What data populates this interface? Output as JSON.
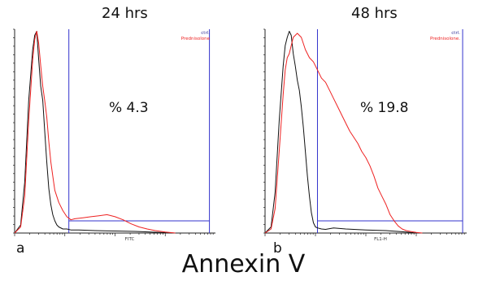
{
  "figure_label": "Annexin V",
  "colors": {
    "ctrl": "#111111",
    "treated": "#ee2222",
    "gate": "#3333cc",
    "axis": "#222222"
  },
  "chart_data": [
    {
      "type": "line",
      "panel_letter": "a",
      "title": "24 hrs",
      "xlabel": "FITC",
      "ylabel": "",
      "gate_text": "% 4.3",
      "legend": [
        "ctrl.",
        "Prednisolone"
      ],
      "legend_position": "top-right",
      "grid": false,
      "xlim": [
        0,
        100
      ],
      "ylim": [
        0,
        100
      ],
      "gate": {
        "x_start": 27,
        "x_end": 97,
        "level": 6
      },
      "series": [
        {
          "name": "ctrl.",
          "x": [
            0,
            3,
            5,
            7,
            9,
            10,
            11,
            12,
            13,
            14,
            15,
            16,
            17,
            18,
            19,
            20,
            21,
            22,
            24,
            26,
            28,
            32,
            40,
            50,
            60,
            70,
            80
          ],
          "y": [
            0,
            4,
            25,
            65,
            90,
            97,
            99,
            85,
            72,
            65,
            50,
            35,
            22,
            14,
            9,
            6,
            4,
            3,
            2,
            2,
            1.5,
            1.5,
            1.2,
            1,
            0.8,
            0.4,
            0
          ]
        },
        {
          "name": "Prednisolone",
          "x": [
            0,
            3,
            5,
            7,
            9,
            10,
            11,
            12,
            13,
            14,
            15,
            16,
            17,
            18,
            19,
            20,
            22,
            24,
            26,
            28,
            30,
            34,
            38,
            42,
            46,
            50,
            54,
            58,
            62,
            66,
            70,
            75,
            80
          ],
          "y": [
            0,
            3,
            18,
            55,
            85,
            95,
            99,
            93,
            82,
            72,
            65,
            57,
            45,
            35,
            28,
            21,
            15,
            11,
            8,
            6.5,
            7,
            7.5,
            8,
            8.5,
            9,
            8,
            6.5,
            4.5,
            3,
            2,
            1.2,
            0.5,
            0
          ]
        }
      ]
    },
    {
      "type": "line",
      "panel_letter": "b",
      "title": "48 hrs",
      "xlabel": "FL1-H",
      "ylabel": "",
      "gate_text": "% 19.8",
      "legend": [
        "ctrl.",
        "Prednisolone."
      ],
      "legend_position": "top-right",
      "grid": false,
      "xlim": [
        0,
        100
      ],
      "ylim": [
        0,
        100
      ],
      "gate": {
        "x_start": 26,
        "x_end": 98,
        "level": 6
      },
      "series": [
        {
          "name": "ctrl.",
          "x": [
            0,
            3,
            5,
            7,
            9,
            10,
            11,
            12,
            13,
            14,
            15,
            16,
            17,
            18,
            19,
            20,
            21,
            22,
            23,
            24,
            25,
            26,
            28,
            30,
            34,
            40,
            50,
            60,
            70,
            75
          ],
          "y": [
            0,
            3,
            20,
            55,
            82,
            92,
            96,
            99,
            97,
            88,
            82,
            75,
            70,
            62,
            52,
            40,
            28,
            18,
            10,
            5,
            3,
            2.5,
            2,
            1.8,
            2.5,
            2,
            1.5,
            1.2,
            0.5,
            0
          ]
        },
        {
          "name": "Prednisolone.",
          "x": [
            0,
            3,
            5,
            7,
            9,
            10,
            11,
            12,
            13,
            14,
            16,
            18,
            20,
            22,
            24,
            26,
            28,
            30,
            32,
            34,
            36,
            38,
            40,
            42,
            44,
            46,
            48,
            50,
            52,
            54,
            56,
            58,
            60,
            62,
            64,
            66,
            68,
            70,
            72,
            75,
            78
          ],
          "y": [
            0,
            2,
            12,
            40,
            68,
            80,
            86,
            88,
            92,
            96,
            98,
            96,
            90,
            86,
            84,
            80,
            76,
            74,
            70,
            66,
            62,
            58,
            54,
            50,
            47,
            44,
            40,
            37,
            33,
            28,
            22,
            18,
            14,
            9,
            6,
            3.5,
            2,
            1.2,
            0.8,
            0.3,
            0
          ]
        }
      ]
    }
  ]
}
